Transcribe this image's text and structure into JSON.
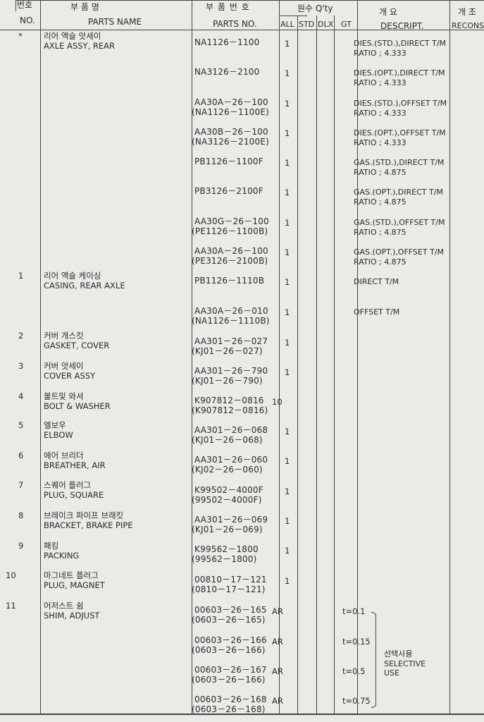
{
  "header": {
    "no_kr": "번호",
    "no_en": "NO.",
    "name_kr": "부       품       명",
    "name_en": "PARTS NAME",
    "partno_kr": "부 품 번 호",
    "partno_en": "PARTS NO.",
    "qty_label": "원수 Q'ty",
    "qty_cols": [
      "ALL",
      "STD",
      "DLX",
      "GT"
    ],
    "desc_kr": "개           요",
    "desc_en": "DESCRIPT.",
    "recons_kr": "개  조",
    "recons_en": "RECONS"
  },
  "items": [
    {
      "no": "*",
      "name_kr": "리어 액슬 앗세이",
      "name_en": "AXLE ASSY, REAR"
    },
    {
      "no": "1",
      "name_kr": "리어 액슬 케이싱",
      "name_en": "CASING, REAR AXLE"
    },
    {
      "no": "2",
      "name_kr": "커버 개스킷",
      "name_en": "GASKET, COVER"
    },
    {
      "no": "3",
      "name_kr": "커버 앗세이",
      "name_en": "COVER ASSY"
    },
    {
      "no": "4",
      "name_kr": "볼트및 와셔",
      "name_en": "BOLT & WASHER"
    },
    {
      "no": "5",
      "name_kr": "엘보우",
      "name_en": "ELBOW"
    },
    {
      "no": "6",
      "name_kr": "에어 브리더",
      "name_en": "BREATHER, AIR"
    },
    {
      "no": "7",
      "name_kr": "스퀘어 플러그",
      "name_en": "PLUG, SQUARE"
    },
    {
      "no": "8",
      "name_kr": "브레이크 파이프 브래킷",
      "name_en": "BRACKET, BRAKE PIPE"
    },
    {
      "no": "9",
      "name_kr": "패킹",
      "name_en": "PACKING"
    },
    {
      "no": "10",
      "name_kr": "마그네트 플러그",
      "name_en": "PLUG, MAGNET"
    },
    {
      "no": "11",
      "name_kr": "어저스트 쉼",
      "name_en": "SHIM, ADJUST"
    }
  ],
  "parts": [
    {
      "pn": "NA1126－1100",
      "pn2": "",
      "all": "1",
      "desc1": "DIES.(STD.),DIRECT T/M",
      "desc2": "RATIO ; 4.333"
    },
    {
      "pn": "NA3126－2100",
      "pn2": "",
      "all": "1",
      "desc1": "DIES.(OPT.),DIRECT T/M",
      "desc2": "RATIO ; 4.333"
    },
    {
      "pn": "AA30A－26－100",
      "pn2": "(NA1126－1100E)",
      "all": "1",
      "desc1": "DIES.(STD.),OFFSET T/M",
      "desc2": "RATIO ; 4.333"
    },
    {
      "pn": "AA30B－26－100",
      "pn2": "(NA3126－2100E)",
      "all": "1",
      "desc1": "DIES.(OPT.),OFFSET T/M",
      "desc2": "RATIO ; 4.333"
    },
    {
      "pn": "PB1126－1100F",
      "pn2": "",
      "all": "1",
      "desc1": "GAS.(STD.),DIRECT T/M",
      "desc2": "RATIO ; 4.875"
    },
    {
      "pn": "PB3126－2100F",
      "pn2": "",
      "all": "1",
      "desc1": "GAS.(OPT.),DIRECT T/M",
      "desc2": "RATIO ; 4.875"
    },
    {
      "pn": "AA30G－26－100",
      "pn2": "(PE1126－1100B)",
      "all": "1",
      "desc1": "GAS.(STD.),OFFSET T/M",
      "desc2": "RATIO ; 4.875"
    },
    {
      "pn": "AA30A－26－100",
      "pn2": "(PE3126－2100B)",
      "all": "1",
      "desc1": "GAS.(OPT.),OFFSET T/M",
      "desc2": "RATIO ; 4.875"
    },
    {
      "pn": "PB1126－1110B",
      "pn2": "",
      "all": "1",
      "desc1": "DIRECT T/M",
      "desc2": ""
    },
    {
      "pn": "AA30A－26－010",
      "pn2": "(NA1126－1110B)",
      "all": "1",
      "desc1": "OFFSET T/M",
      "desc2": ""
    },
    {
      "pn": "AA301－26－027",
      "pn2": "(KJ01－26－027)",
      "all": "1",
      "desc1": "",
      "desc2": ""
    },
    {
      "pn": "AA301－26－790",
      "pn2": "(KJ01－26－790)",
      "all": "1",
      "desc1": "",
      "desc2": ""
    },
    {
      "pn": "K907812－0816",
      "pn2": "(K907812－0816)",
      "all": "10",
      "desc1": "",
      "desc2": ""
    },
    {
      "pn": "AA301－26－068",
      "pn2": "(KJ01－26－068)",
      "all": "1",
      "desc1": "",
      "desc2": ""
    },
    {
      "pn": "AA301－26－060",
      "pn2": "(KJ02－26－060)",
      "all": "1",
      "desc1": "",
      "desc2": ""
    },
    {
      "pn": "K99502－4000F",
      "pn2": "(99502－4000F)",
      "all": "1",
      "desc1": "",
      "desc2": ""
    },
    {
      "pn": "AA301－26－069",
      "pn2": "(KJ01－26－069)",
      "all": "1",
      "desc1": "",
      "desc2": ""
    },
    {
      "pn": "K99562－1800",
      "pn2": "(99562－1800)",
      "all": "1",
      "desc1": "",
      "desc2": ""
    },
    {
      "pn": "00810－17－121",
      "pn2": "(0810－17－121)",
      "all": "1",
      "desc1": "",
      "desc2": ""
    },
    {
      "pn": "00603－26－165",
      "pn2": "(0603－26－165)",
      "all": "AR",
      "desc1": "t=0.1",
      "desc2": ""
    },
    {
      "pn": "00603－26－166",
      "pn2": "(0603－26－166)",
      "all": "AR",
      "desc1": "t=0.15",
      "desc2": ""
    },
    {
      "pn": "00603－26－167",
      "pn2": "(0603－26－166)",
      "all": "AR",
      "desc1": "t=0.5",
      "desc2": ""
    },
    {
      "pn": "00603－26－168",
      "pn2": "(0603－26－168)",
      "all": "AR",
      "desc1": "t=0.75",
      "desc2": ""
    }
  ],
  "selective_note": {
    "kr": "선택사용",
    "en1": "SELECTIVE",
    "en2": "USE"
  }
}
